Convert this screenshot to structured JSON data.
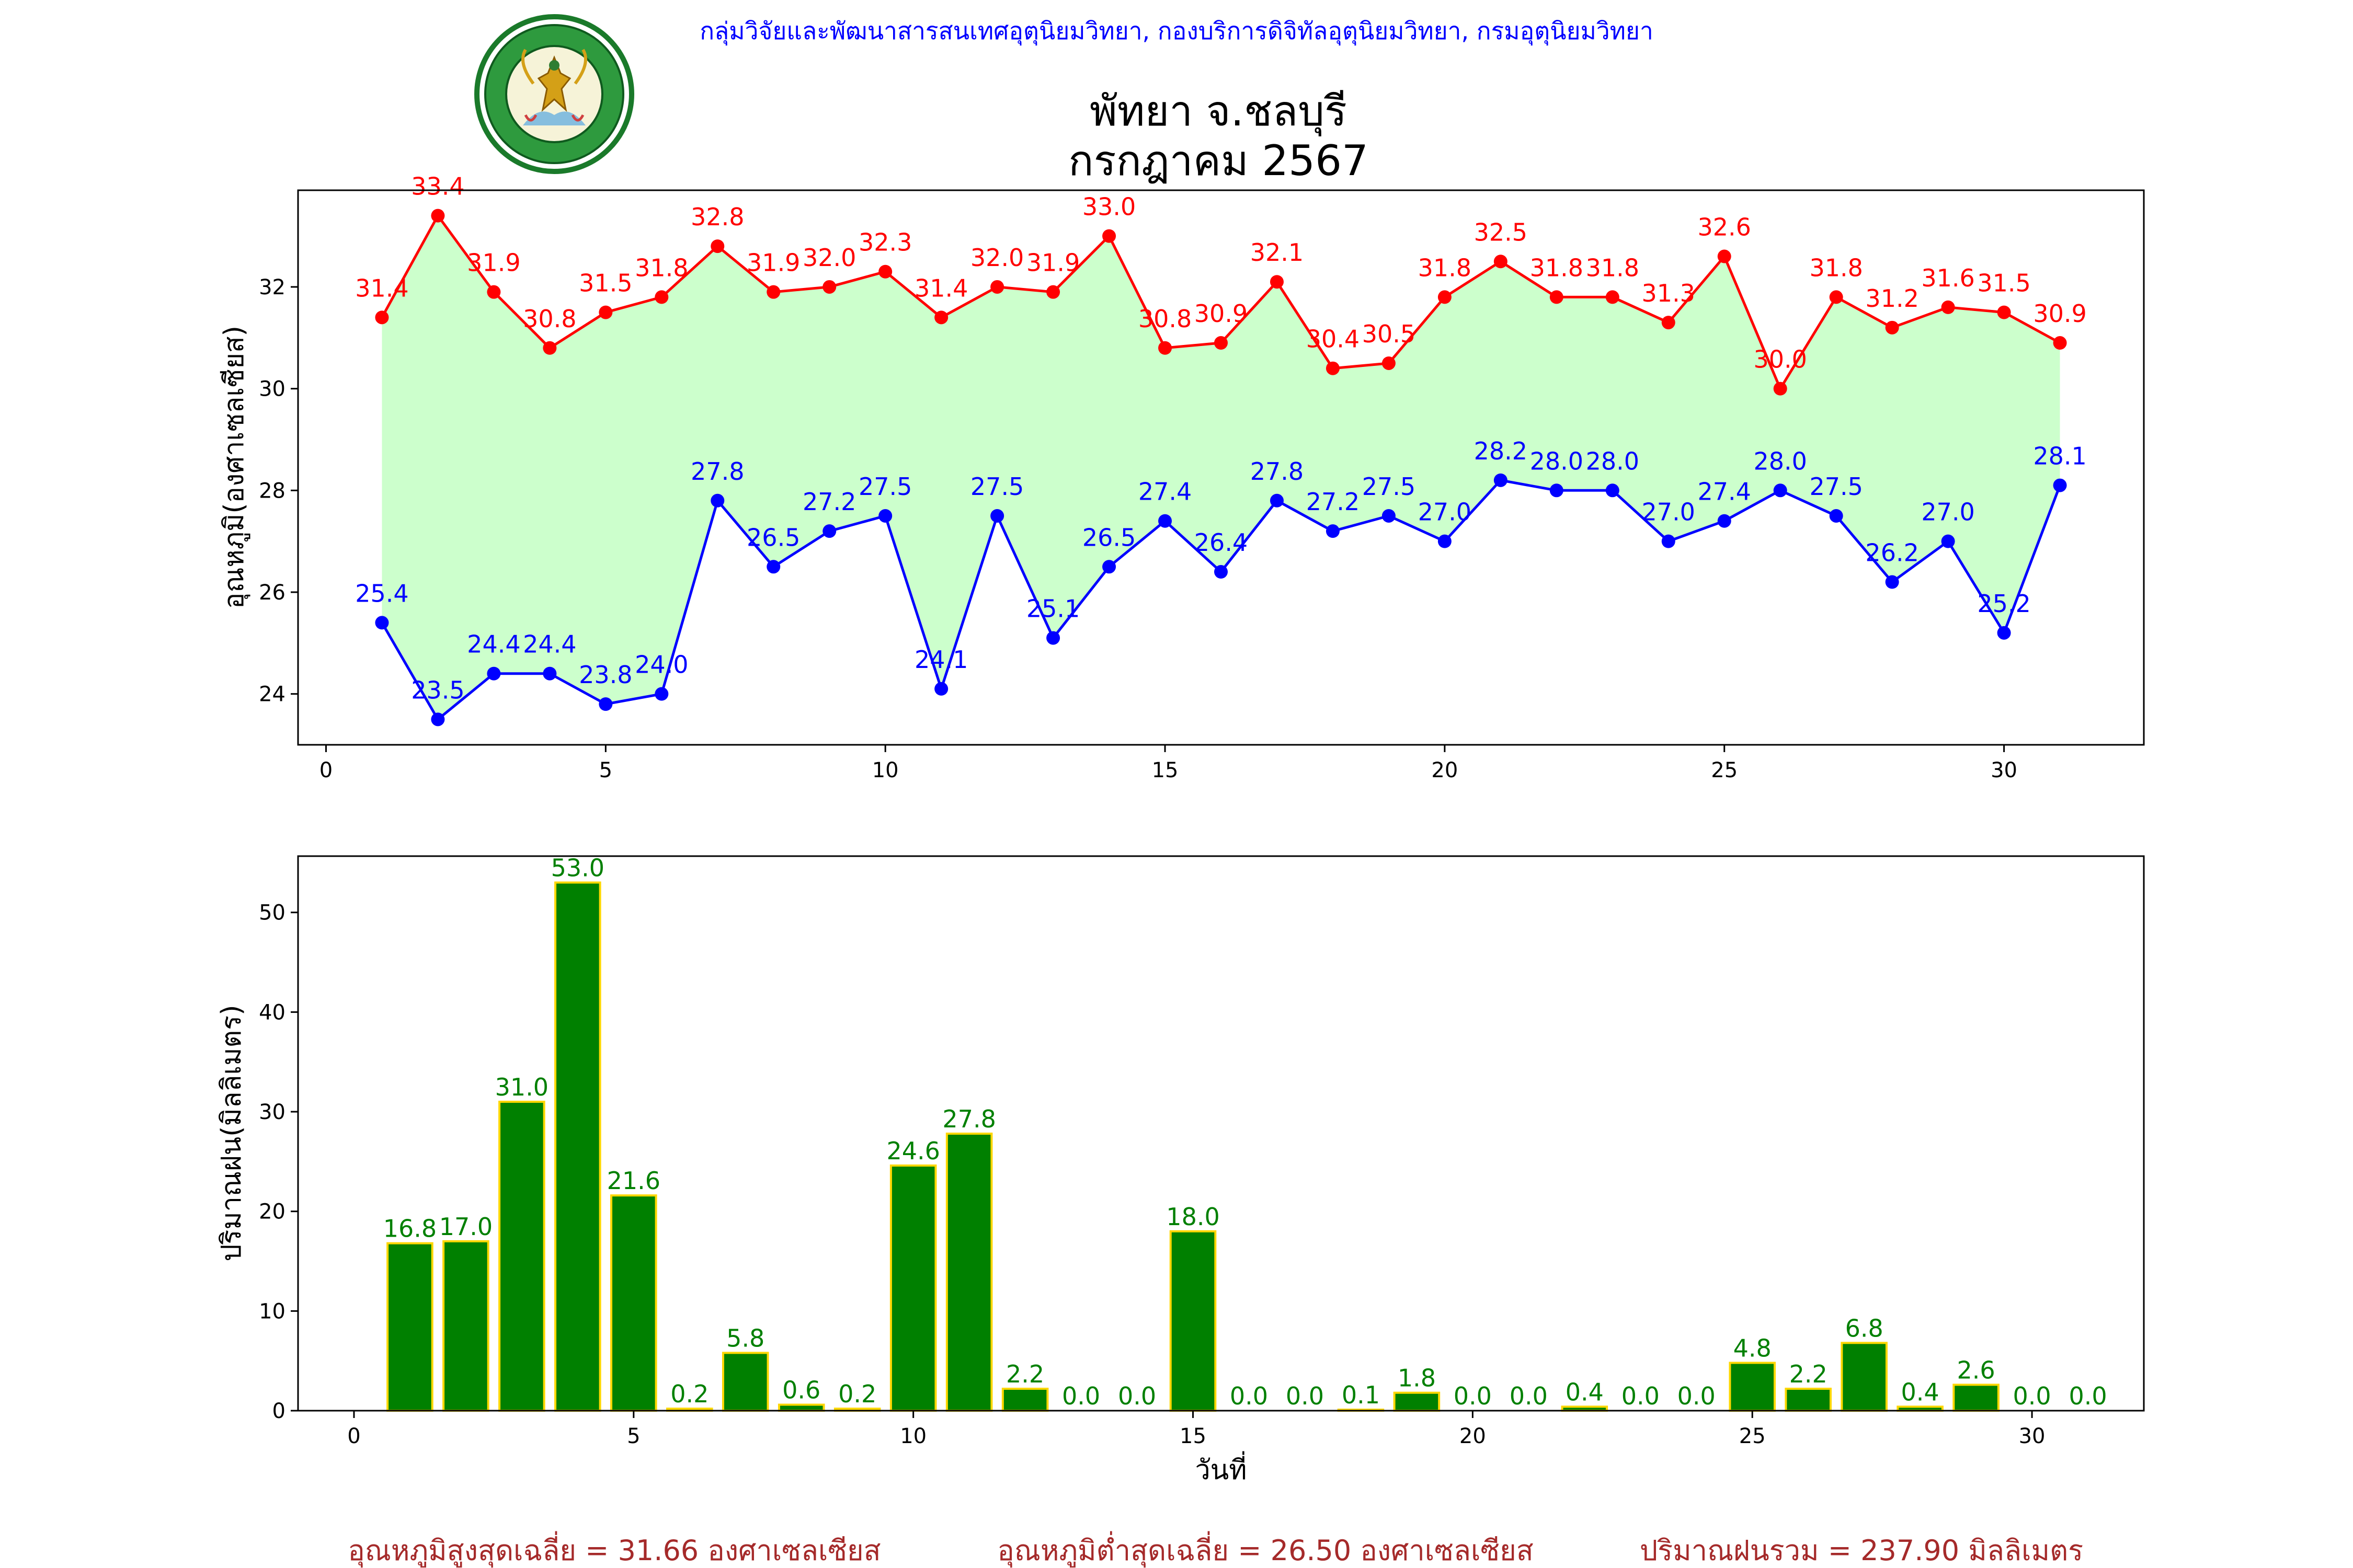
{
  "header": {
    "agency": "กลุ่มวิจัยและพัฒนาสารสนเทศอุตุนิยมวิทยา, กองบริการดิจิทัลอุตุนิยมวิทยา, กรมอุตุนิยมวิทยา",
    "logo_text_top": "กรมอุตุนิยมวิทยา",
    "logo_text_bottom": "METEOROLOGICAL DEPARTMENT",
    "title_line1": "พัทยา จ.ชลบุรี",
    "title_line2": "กรกฎาคม 2567"
  },
  "colors": {
    "header_text": "#0000ff",
    "max_temp": "#ff0000",
    "min_temp": "#0000ff",
    "temp_fill": "#ccffcc",
    "rain_bar": "#008000",
    "rain_edge": "#ffd700",
    "footer_text": "#a52a2a"
  },
  "chart_data": [
    {
      "type": "line",
      "ylabel": "อุณหภูมิ(องศาเซลเซียส)",
      "xlim": [
        -0.5,
        32.5
      ],
      "ylim": [
        23,
        33.9
      ],
      "xticks": [
        0,
        5,
        10,
        15,
        20,
        25,
        30
      ],
      "yticks": [
        24,
        26,
        28,
        30,
        32
      ],
      "x": [
        1,
        2,
        3,
        4,
        5,
        6,
        7,
        8,
        9,
        10,
        11,
        12,
        13,
        14,
        15,
        16,
        17,
        18,
        19,
        20,
        21,
        22,
        23,
        24,
        25,
        26,
        27,
        28,
        29,
        30,
        31
      ],
      "series": [
        {
          "key": "max",
          "values": [
            31.4,
            33.4,
            31.9,
            30.8,
            31.5,
            31.8,
            32.8,
            31.9,
            32.0,
            32.3,
            31.4,
            32.0,
            31.9,
            33.0,
            30.8,
            30.9,
            32.1,
            30.4,
            30.5,
            31.8,
            32.5,
            31.8,
            31.8,
            31.3,
            32.6,
            30.0,
            31.8,
            31.2,
            31.6,
            31.5,
            30.9
          ]
        },
        {
          "key": "min",
          "values": [
            25.4,
            23.5,
            24.4,
            24.4,
            23.8,
            24.0,
            27.8,
            26.5,
            27.2,
            27.5,
            24.1,
            27.5,
            25.1,
            26.5,
            27.4,
            26.4,
            27.8,
            27.2,
            27.5,
            27.0,
            28.2,
            28.0,
            28.0,
            27.0,
            27.4,
            28.0,
            27.5,
            26.2,
            27.0,
            25.2,
            28.1
          ]
        }
      ],
      "fill_between": true,
      "grid": false
    },
    {
      "type": "bar",
      "ylabel": "ปริมาณฝน(มิลลิเมตร)",
      "xlabel": "วันที่",
      "xlim": [
        -1,
        32
      ],
      "ylim": [
        0,
        55.65
      ],
      "xticks": [
        0,
        5,
        10,
        15,
        20,
        25,
        30
      ],
      "yticks": [
        0,
        10,
        20,
        30,
        40,
        50
      ],
      "x": [
        1,
        2,
        3,
        4,
        5,
        6,
        7,
        8,
        9,
        10,
        11,
        12,
        13,
        14,
        15,
        16,
        17,
        18,
        19,
        20,
        21,
        22,
        23,
        24,
        25,
        26,
        27,
        28,
        29,
        30,
        31
      ],
      "values": [
        16.8,
        17.0,
        31.0,
        53.0,
        21.6,
        0.2,
        5.8,
        0.6,
        0.2,
        24.6,
        27.8,
        2.2,
        0.0,
        0.0,
        18.0,
        0.0,
        0.0,
        0.1,
        1.8,
        0.0,
        0.0,
        0.4,
        0.0,
        0.0,
        4.8,
        2.2,
        6.8,
        0.4,
        2.6,
        0.0,
        0.0
      ],
      "grid": false
    }
  ],
  "footer": {
    "avg_max": "อุณหภูมิสูงสุดเฉลี่ย = 31.66 องศาเซลเซียส",
    "avg_min": "อุณหภูมิต่ำสุดเฉลี่ย = 26.50 องศาเซลเซียส",
    "total_rain": "ปริมาณฝนรวม = 237.90 มิลลิเมตร"
  }
}
